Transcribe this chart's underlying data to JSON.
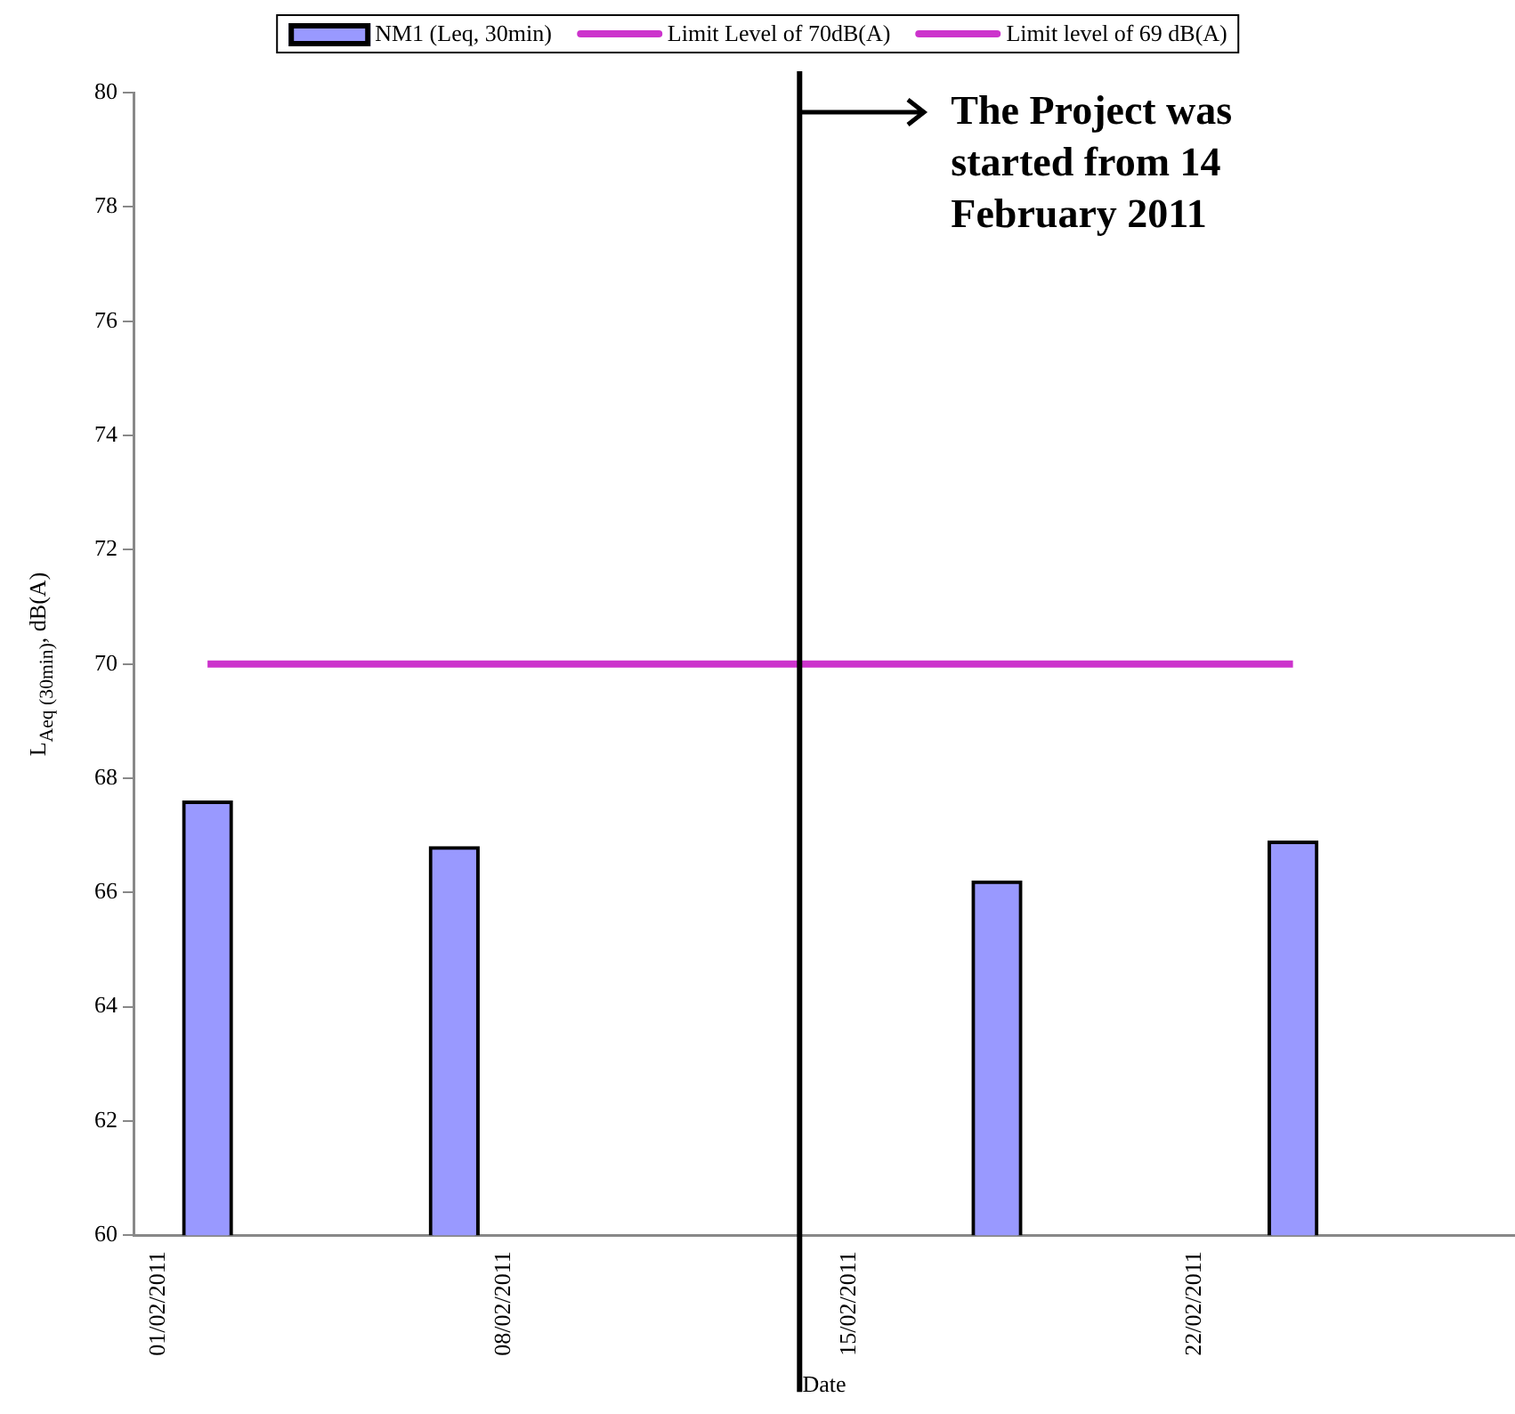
{
  "chart_data": {
    "type": "bar",
    "xlabel": "Date",
    "ylabel": "L$_{Aeq (30min)}$, dB(A)",
    "x": [
      "2011-02-02",
      "2011-02-07",
      "2011-02-18",
      "2011-02-24"
    ],
    "series": [
      {
        "name": "NM1 (Leq, 30min)",
        "color": "#9999ff",
        "values": [
          67.6,
          66.8,
          66.2,
          66.9
        ]
      },
      {
        "name": "Limit Level of 70dB(A)",
        "type": "line",
        "color": "#cc33cc",
        "values": [
          70,
          70,
          70,
          70
        ]
      },
      {
        "name": "Limit level of 69 dB(A)",
        "type": "line",
        "color": "#cc33cc",
        "values": [
          null,
          null,
          null,
          null
        ]
      }
    ],
    "xlim": [
      "2011-01-31T12:00",
      "2011-02-28T12:00"
    ],
    "xticks": [
      {
        "value": "2011-02-01",
        "label": "01/02/2011"
      },
      {
        "value": "2011-02-08",
        "label": "08/02/2011"
      },
      {
        "value": "2011-02-15",
        "label": "15/02/2011"
      },
      {
        "value": "2011-02-22",
        "label": "22/02/2011"
      }
    ],
    "ylim": [
      60,
      80
    ],
    "yticks": [
      60,
      62,
      64,
      66,
      68,
      70,
      72,
      74,
      76,
      78,
      80
    ],
    "ref_lines": [
      {
        "axis": "x",
        "value": "2011-02-14",
        "label": "The Project was started from 14 February 2011",
        "color": "#000000"
      }
    ],
    "legend": "top",
    "grid": false,
    "marker": "none"
  }
}
